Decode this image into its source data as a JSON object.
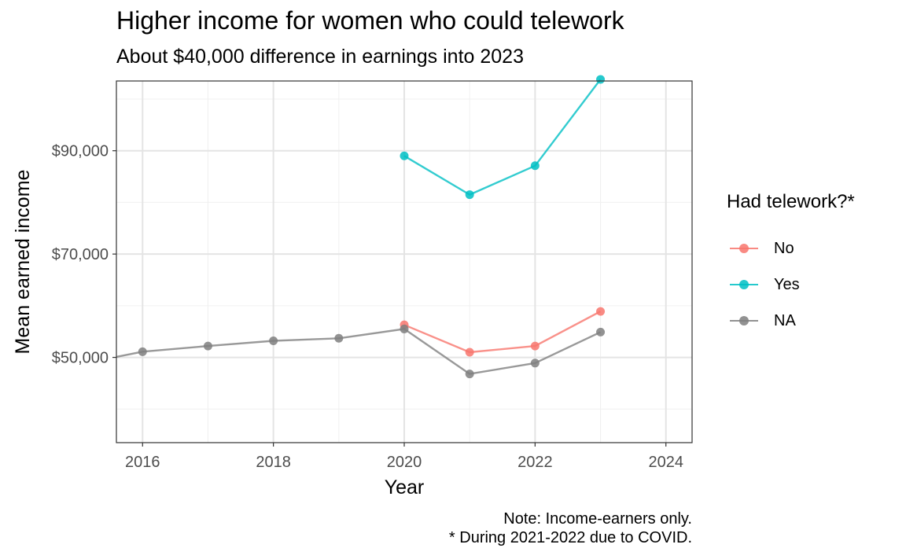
{
  "title": "Higher income for women who could telework",
  "subtitle": "About $40,000 difference in earnings into 2023",
  "caption": [
    "Note: Income-earners only.",
    "* During 2021-2022 due to COVID."
  ],
  "chart_data": {
    "type": "line",
    "xlabel": "Year",
    "ylabel": "Mean earned income",
    "xlim": [
      2015.6,
      2024.4
    ],
    "ylim": [
      33500,
      103500
    ],
    "x_ticks": [
      2016,
      2018,
      2020,
      2022,
      2024
    ],
    "x_minor": [
      2017,
      2019,
      2021,
      2023
    ],
    "y_ticks": [
      50000,
      70000,
      90000
    ],
    "y_tick_labels": [
      "$50,000",
      "$70,000",
      "$90,000"
    ],
    "y_minor": [
      40000,
      60000,
      80000,
      100000
    ],
    "grid": true,
    "legend": {
      "title": "Had telework?*",
      "position": "right"
    },
    "series": [
      {
        "name": "No",
        "color": "#F8766D",
        "x": [
          2020,
          2021,
          2022,
          2023
        ],
        "y": [
          56300,
          51000,
          52200,
          58900
        ]
      },
      {
        "name": "Yes",
        "color": "#00BFC4",
        "x": [
          2020,
          2021,
          2022,
          2023
        ],
        "y": [
          89000,
          81500,
          87100,
          103800
        ]
      },
      {
        "name": "NA",
        "color": "#7F7F7F",
        "x": [
          2015.6,
          2016,
          2017,
          2018,
          2019,
          2020,
          2021,
          2022,
          2023
        ],
        "y": [
          50100,
          51100,
          52200,
          53200,
          53700,
          55500,
          46800,
          48900,
          54900
        ]
      }
    ]
  }
}
